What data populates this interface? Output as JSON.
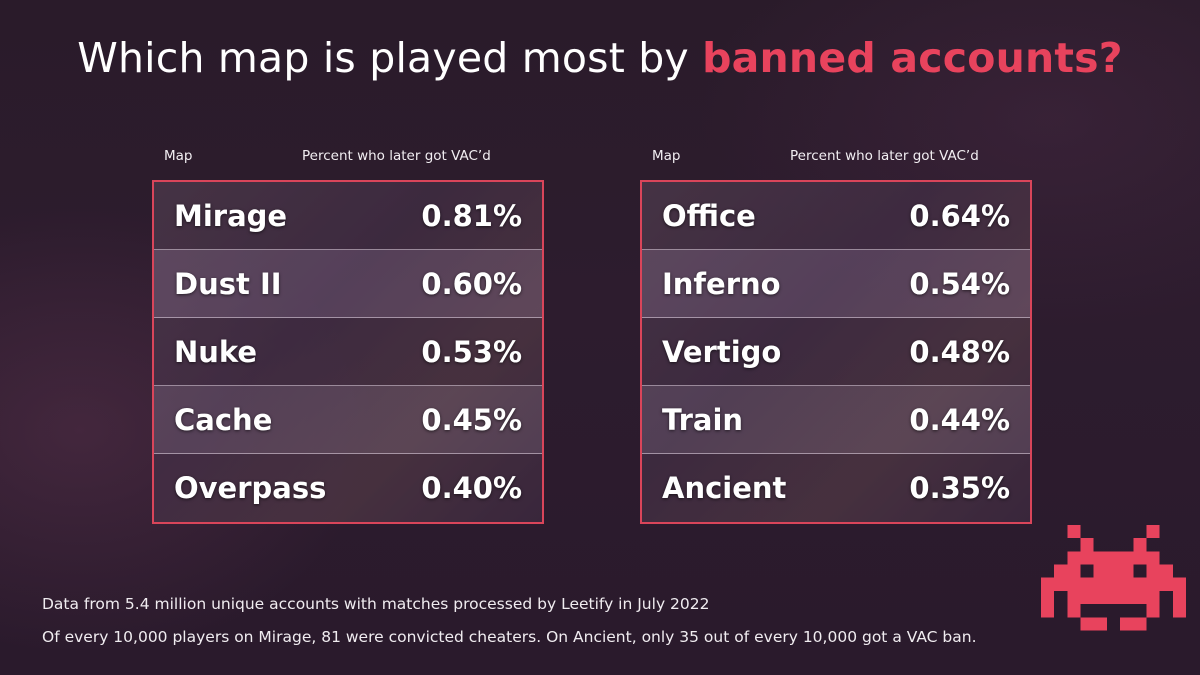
{
  "title": {
    "prefix": "Which map is played most by ",
    "highlight": "banned accounts?"
  },
  "colors": {
    "accent": "#e8435d",
    "panel_border": "#d9455a",
    "background": "#2b1b2c",
    "text": "#ffffff"
  },
  "column_headers": {
    "map": "Map",
    "percent": "Percent who later got VAC’d"
  },
  "chart_data": {
    "type": "table",
    "title": "Which map is played most by banned accounts?",
    "columns": [
      "Map",
      "Percent who later got VAC’d"
    ],
    "tables": [
      {
        "rows": [
          {
            "map": "Mirage",
            "percent": "0.81%"
          },
          {
            "map": "Dust II",
            "percent": "0.60%"
          },
          {
            "map": "Nuke",
            "percent": "0.53%"
          },
          {
            "map": "Cache",
            "percent": "0.45%"
          },
          {
            "map": "Overpass",
            "percent": "0.40%"
          }
        ]
      },
      {
        "rows": [
          {
            "map": "Office",
            "percent": "0.64%"
          },
          {
            "map": "Inferno",
            "percent": "0.54%"
          },
          {
            "map": "Vertigo",
            "percent": "0.48%"
          },
          {
            "map": "Train",
            "percent": "0.44%"
          },
          {
            "map": "Ancient",
            "percent": "0.35%"
          }
        ]
      }
    ]
  },
  "footnotes": {
    "line1": "Data from 5.4 million unique accounts with matches processed by Leetify in July 2022",
    "line2": "Of every 10,000 players on Mirage, 81 were convicted cheaters. On Ancient, only 35 out of every 10,000 got a VAC ban."
  },
  "icons": {
    "mascot": "space-invader-icon"
  }
}
